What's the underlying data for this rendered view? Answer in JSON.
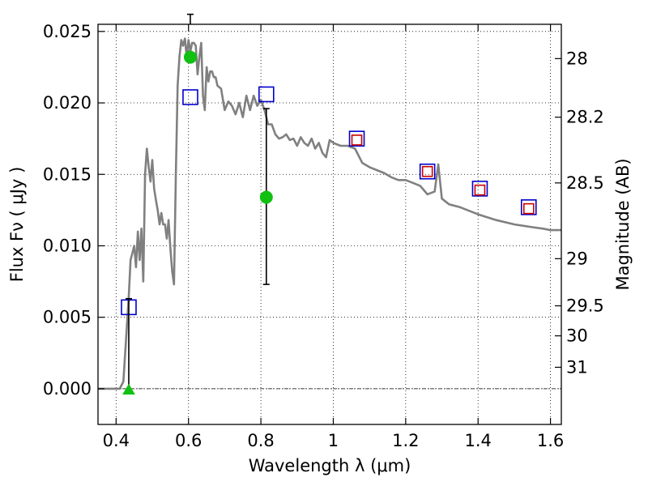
{
  "chart_data": {
    "type": "line",
    "xlabel": "Wavelength  λ (μm)",
    "ylabel": "Flux  Fν  ( μJy )",
    "ylabel_right": "Magnitude (AB)",
    "xlim": [
      0.35,
      1.63
    ],
    "ylim": [
      -0.0025,
      0.0255
    ],
    "x_ticks": [
      0.4,
      0.6,
      0.8,
      1,
      1.2,
      1.4,
      1.6
    ],
    "x_tick_labels": [
      "0.4",
      "0.6",
      "0.8",
      "1",
      "1.2",
      "1.4",
      "1.6"
    ],
    "y_ticks": [
      0.0,
      0.005,
      0.01,
      0.015,
      0.02,
      0.025
    ],
    "y_tick_labels": [
      "0.000",
      "0.005",
      "0.010",
      "0.015",
      "0.020",
      "0.025"
    ],
    "right_ticks": [
      {
        "label": "28",
        "flux": 0.0231
      },
      {
        "label": "28.2",
        "flux": 0.019
      },
      {
        "label": "28.5",
        "flux": 0.0144
      },
      {
        "label": "29",
        "flux": 0.0091
      },
      {
        "label": "29.5",
        "flux": 0.0058
      },
      {
        "label": "30",
        "flux": 0.0037
      },
      {
        "label": "31",
        "flux": 0.0015
      }
    ],
    "grid": true,
    "series": [
      {
        "kind": "line",
        "color": "#808080",
        "x": [
          0.35,
          0.41,
          0.42,
          0.43,
          0.435,
          0.44,
          0.445,
          0.45,
          0.455,
          0.46,
          0.465,
          0.47,
          0.475,
          0.48,
          0.485,
          0.49,
          0.495,
          0.5,
          0.505,
          0.51,
          0.515,
          0.52,
          0.525,
          0.53,
          0.535,
          0.54,
          0.545,
          0.55,
          0.555,
          0.56,
          0.565,
          0.57,
          0.575,
          0.58,
          0.585,
          0.59,
          0.595,
          0.6,
          0.605,
          0.61,
          0.615,
          0.62,
          0.625,
          0.63,
          0.635,
          0.64,
          0.645,
          0.65,
          0.655,
          0.66,
          0.665,
          0.67,
          0.675,
          0.68,
          0.69,
          0.7,
          0.71,
          0.72,
          0.73,
          0.74,
          0.75,
          0.76,
          0.77,
          0.78,
          0.79,
          0.8,
          0.81,
          0.82,
          0.83,
          0.84,
          0.85,
          0.86,
          0.87,
          0.88,
          0.89,
          0.9,
          0.91,
          0.92,
          0.93,
          0.94,
          0.95,
          0.96,
          0.97,
          0.98,
          0.99,
          1.0,
          1.02,
          1.04,
          1.06,
          1.08,
          1.1,
          1.12,
          1.14,
          1.16,
          1.18,
          1.2,
          1.22,
          1.24,
          1.26,
          1.28,
          1.29,
          1.3,
          1.32,
          1.35,
          1.4,
          1.45,
          1.5,
          1.55,
          1.58,
          1.6,
          1.63
        ],
        "y": [
          0.0,
          0.0,
          0.0005,
          0.0045,
          0.0065,
          0.009,
          0.0095,
          0.01,
          0.0085,
          0.011,
          0.009,
          0.0112,
          0.0075,
          0.015,
          0.0168,
          0.0155,
          0.0145,
          0.016,
          0.014,
          0.0132,
          0.0125,
          0.0115,
          0.0123,
          0.0115,
          0.0115,
          0.0105,
          0.0118,
          0.0098,
          0.0082,
          0.0073,
          0.015,
          0.0212,
          0.0232,
          0.0244,
          0.024,
          0.0245,
          0.0232,
          0.0244,
          0.0236,
          0.0242,
          0.0242,
          0.024,
          0.022,
          0.0232,
          0.0242,
          0.0205,
          0.0195,
          0.0225,
          0.0215,
          0.0222,
          0.0222,
          0.0218,
          0.0218,
          0.0212,
          0.021,
          0.0195,
          0.0201,
          0.0198,
          0.0192,
          0.02,
          0.019,
          0.0205,
          0.0195,
          0.0205,
          0.0198,
          0.0202,
          0.0195,
          0.0185,
          0.0185,
          0.0178,
          0.0175,
          0.0176,
          0.0178,
          0.0174,
          0.0175,
          0.017,
          0.0176,
          0.0172,
          0.017,
          0.0175,
          0.0168,
          0.0172,
          0.0165,
          0.0162,
          0.0174,
          0.0172,
          0.017,
          0.017,
          0.0168,
          0.0158,
          0.0155,
          0.0153,
          0.0151,
          0.0148,
          0.0146,
          0.0146,
          0.0144,
          0.0142,
          0.0136,
          0.0138,
          0.0157,
          0.0133,
          0.0129,
          0.0127,
          0.0122,
          0.0118,
          0.0115,
          0.0113,
          0.0112,
          0.0111,
          0.0111
        ]
      },
      {
        "kind": "markers",
        "marker": "open-square",
        "color": "#0000cc",
        "x": [
          0.435,
          0.605,
          0.815,
          1.065,
          1.26,
          1.405,
          1.54
        ],
        "y": [
          0.0057,
          0.0204,
          0.0206,
          0.0175,
          0.0152,
          0.014,
          0.0127
        ]
      },
      {
        "kind": "markers",
        "marker": "small-open-square",
        "color": "#cc0000",
        "x": [
          1.065,
          1.26,
          1.405,
          1.54
        ],
        "y": [
          0.0174,
          0.0152,
          0.0139,
          0.0126
        ]
      },
      {
        "kind": "errorbars",
        "marker": "circle",
        "color": "#11c011",
        "x": [
          0.605,
          0.815
        ],
        "y": [
          0.0232,
          0.0134
        ],
        "err_low": [
          0.0262,
          0.0073
        ],
        "err_high": [
          0.0262,
          0.0196
        ]
      },
      {
        "kind": "upper-limit",
        "marker": "triangle",
        "color": "#11c011",
        "x": [
          0.435
        ],
        "y": [
          -0.0001
        ],
        "err_low": [
          -0.0001
        ],
        "err_high": [
          0.0063
        ]
      }
    ]
  }
}
